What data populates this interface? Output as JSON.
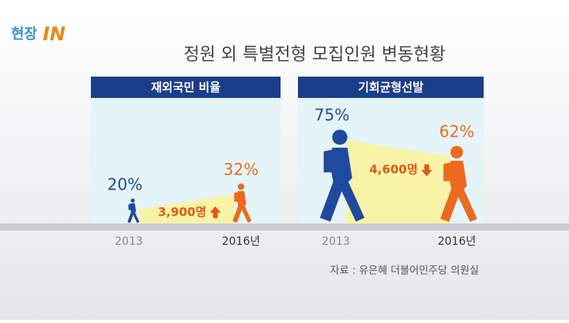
{
  "header": {
    "logo_a": "현장",
    "logo_b": "IN",
    "title": "정원 외 특별전형 모집인원 변동현황"
  },
  "chart_data": [
    {
      "type": "pictograph",
      "title": "재외국민 비율",
      "categories": [
        "2013",
        "2016년"
      ],
      "values": [
        20,
        32
      ],
      "value_labels": [
        "20%",
        "32%"
      ],
      "colors": [
        "#1f4a9e",
        "#ec6a1e"
      ],
      "annotation": "3,900명"
    },
    {
      "type": "pictograph",
      "title": "기회균형선발",
      "categories": [
        "2013",
        "2016년"
      ],
      "values": [
        75,
        62
      ],
      "value_labels": [
        "75%",
        "62%"
      ],
      "colors": [
        "#1f4a9e",
        "#ec6a1e"
      ],
      "annotation": "4,600명"
    }
  ],
  "source": "자료 : 유은혜 더불어민주당 의원실"
}
